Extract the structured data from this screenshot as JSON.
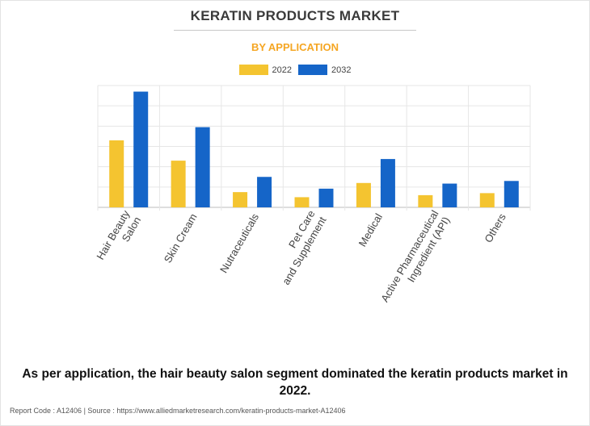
{
  "header": {
    "title": "KERATIN PRODUCTS MARKET",
    "subtitle": "BY APPLICATION"
  },
  "legend": {
    "items": [
      {
        "label": "2022",
        "color": "#f4c430"
      },
      {
        "label": "2032",
        "color": "#1565c8"
      }
    ]
  },
  "chart_data": {
    "type": "bar",
    "title": "KERATIN PRODUCTS MARKET",
    "subtitle": "BY APPLICATION",
    "categories": [
      [
        "Hair Beauty",
        "Salon"
      ],
      [
        "Skin Cream"
      ],
      [
        "Nutraceuticals"
      ],
      [
        "Pet Care",
        "and Supplement"
      ],
      [
        "Medical"
      ],
      [
        "Active Pharmaceutical",
        "Ingredient (API)"
      ],
      [
        "Others"
      ]
    ],
    "series": [
      {
        "name": "2022",
        "color": "#f4c430",
        "values": [
          3.3,
          2.3,
          0.75,
          0.5,
          1.2,
          0.6,
          0.7
        ]
      },
      {
        "name": "2032",
        "color": "#1565c8",
        "values": [
          5.7,
          3.95,
          1.5,
          0.92,
          2.38,
          1.17,
          1.3
        ]
      }
    ],
    "ylim": [
      0,
      6
    ],
    "y_gridlines": 6,
    "y_tick_labels_shown": false,
    "grid": true,
    "legend_position": "top-center"
  },
  "caption": "As per application, the hair beauty salon segment dominated the keratin products market in 2022.",
  "footer": "Report Code : A12406  |  Source : https://www.alliedmarketresearch.com/keratin-products-market-A12406"
}
